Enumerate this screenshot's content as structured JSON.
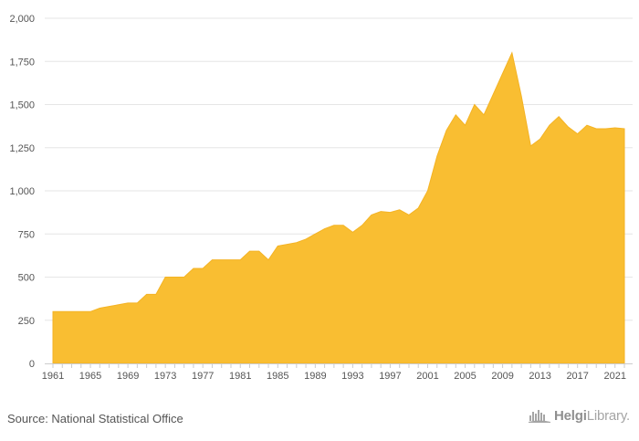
{
  "chart_data": {
    "type": "area",
    "title": "",
    "xlabel": "",
    "ylabel": "",
    "color": "#f9be32",
    "ylim": [
      0,
      2000
    ],
    "xlim": [
      1961,
      2022
    ],
    "yticks": [
      0,
      250,
      500,
      750,
      1000,
      1250,
      1500,
      1750,
      2000
    ],
    "ytick_labels": [
      "0",
      "250",
      "500",
      "750",
      "1,000",
      "1,250",
      "1,500",
      "1,750",
      "2,000"
    ],
    "xticks": [
      1961,
      1965,
      1969,
      1973,
      1977,
      1981,
      1985,
      1989,
      1993,
      1997,
      2001,
      2005,
      2009,
      2013,
      2017,
      2021
    ],
    "grid": "horizontal",
    "series": [
      {
        "x": [
          1961,
          1962,
          1963,
          1964,
          1965,
          1966,
          1967,
          1968,
          1969,
          1970,
          1971,
          1972,
          1973,
          1974,
          1975,
          1976,
          1977,
          1978,
          1979,
          1980,
          1981,
          1982,
          1983,
          1984,
          1985,
          1986,
          1987,
          1988,
          1989,
          1990,
          1991,
          1992,
          1993,
          1994,
          1995,
          1996,
          1997,
          1998,
          1999,
          2000,
          2001,
          2002,
          2003,
          2004,
          2005,
          2006,
          2007,
          2008,
          2009,
          2010,
          2011,
          2012,
          2013,
          2014,
          2015,
          2016,
          2017,
          2018,
          2019,
          2020,
          2021,
          2022
        ],
        "values": [
          300,
          300,
          300,
          300,
          300,
          320,
          330,
          340,
          350,
          350,
          400,
          400,
          500,
          500,
          500,
          550,
          550,
          600,
          600,
          600,
          600,
          650,
          650,
          600,
          680,
          690,
          700,
          720,
          750,
          780,
          800,
          800,
          760,
          800,
          860,
          880,
          875,
          890,
          860,
          900,
          1000,
          1200,
          1350,
          1440,
          1380,
          1500,
          1440,
          1560,
          1680,
          1800,
          1550,
          1260,
          1300,
          1380,
          1430,
          1370,
          1330,
          1380,
          1360,
          1360,
          1365,
          1360
        ]
      }
    ]
  },
  "footer": {
    "source": "Source: National Statistical Office",
    "brand_bold": "Helgi",
    "brand_light": "Library."
  }
}
